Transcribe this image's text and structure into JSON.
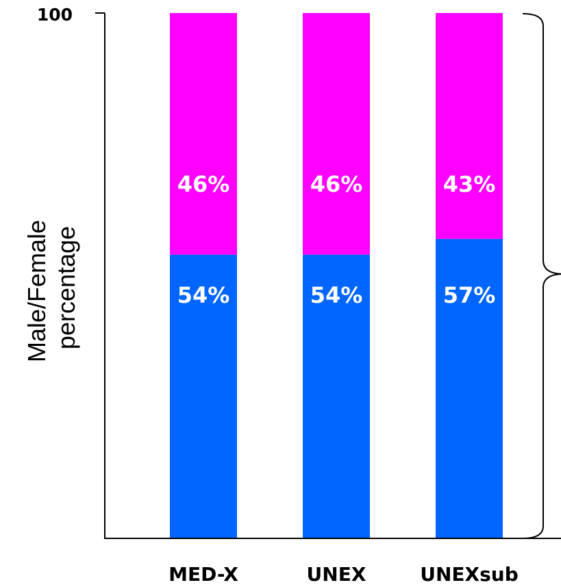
{
  "chart_data": {
    "type": "bar",
    "stacked": true,
    "categories": [
      "MED-X",
      "UNEX",
      "UNEXsub"
    ],
    "series": [
      {
        "values": [
          54,
          54,
          57
        ],
        "labels": [
          "54%",
          "54%",
          "57%"
        ]
      },
      {
        "values": [
          46,
          46,
          43
        ],
        "labels": [
          "46%",
          "46%",
          "43%"
        ]
      }
    ],
    "colors": [
      "#0066ff",
      "#ff00ff"
    ],
    "ylabel": [
      "Male/Female",
      "percentage"
    ],
    "yticks": [
      "100"
    ],
    "ylim": [
      0,
      100
    ],
    "grid": false,
    "bracket": "right"
  }
}
